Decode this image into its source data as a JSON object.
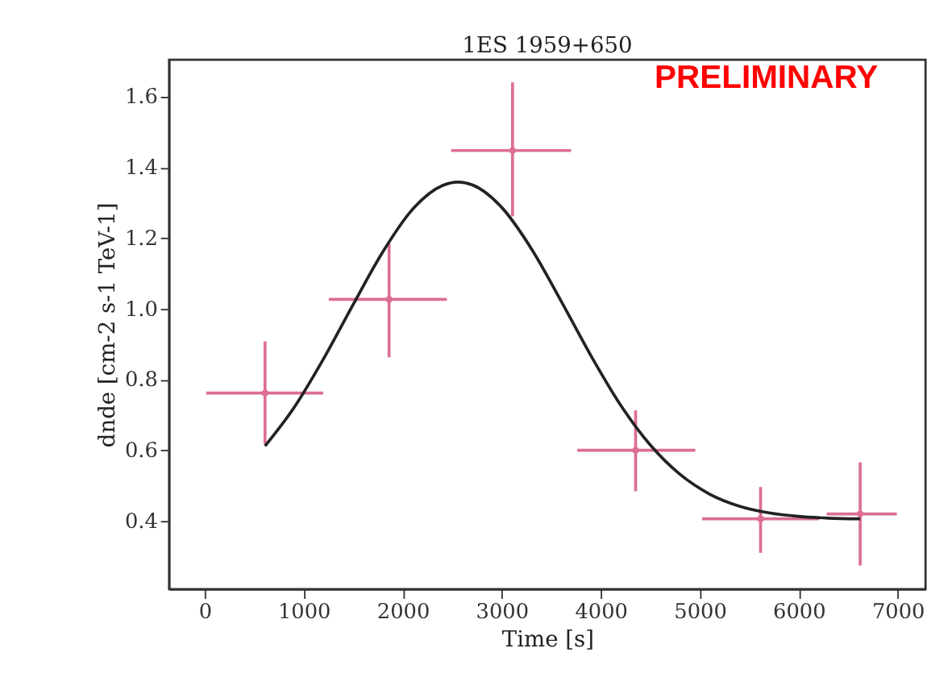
{
  "chart_data": {
    "type": "scatter",
    "title": "1ES 1959+650",
    "xlabel": "Time [s]",
    "ylabel": "dnde [cm-2 s-1 TeV-1]",
    "annotations": [
      "PRELIMINARY"
    ],
    "xlim": [
      -360,
      7280
    ],
    "ylim": [
      0.207,
      1.705
    ],
    "xticks": [
      0,
      1000,
      2000,
      3000,
      4000,
      5000,
      6000,
      7000
    ],
    "yticks": [
      {
        "value": 0.4,
        "label": "0.4"
      },
      {
        "value": 0.6,
        "label": "0.6"
      },
      {
        "value": 0.8,
        "label": "0.8"
      },
      {
        "value": 1.0,
        "label": "1.0"
      },
      {
        "value": 1.2,
        "label": "1.2"
      },
      {
        "value": 1.4,
        "label": "1.4"
      },
      {
        "value": 1.6,
        "label": "1.6"
      }
    ],
    "grid": false,
    "series": [
      {
        "color": "#dd6e95",
        "marker": "circle",
        "x": [
          609,
          1862,
          3109,
          4352,
          5614,
          6620
        ],
        "values": [
          0.762,
          1.027,
          1.448,
          0.6,
          0.406,
          0.42
        ],
        "errors": [
          [
            0.618,
            0.908
          ],
          [
            0.863,
            1.186
          ],
          [
            1.262,
            1.641
          ],
          [
            0.484,
            0.713
          ],
          [
            0.31,
            0.496
          ],
          [
            0.274,
            0.566
          ]
        ],
        "xerrors": [
          [
            15,
            1197
          ],
          [
            1253,
            2446
          ],
          [
            2489,
            3701
          ],
          [
            3763,
            4955
          ],
          [
            5023,
            6204
          ],
          [
            6282,
            6990
          ]
        ]
      },
      {
        "type": "line",
        "color": "#222222",
        "marker": "none",
        "line_style": "solid",
        "x": [
          609,
          900,
          1200,
          1500,
          1800,
          2100,
          2400,
          2559,
          2700,
          3000,
          3300,
          3600,
          3900,
          4200,
          4500,
          4800,
          5100,
          5400,
          5700,
          6000,
          6300,
          6620
        ],
        "values": [
          0.612,
          0.72,
          0.859,
          1.013,
          1.162,
          1.282,
          1.349,
          1.359,
          1.351,
          1.287,
          1.17,
          1.022,
          0.868,
          0.728,
          0.615,
          0.532,
          0.476,
          0.442,
          0.423,
          0.413,
          0.408,
          0.406
        ]
      }
    ]
  }
}
